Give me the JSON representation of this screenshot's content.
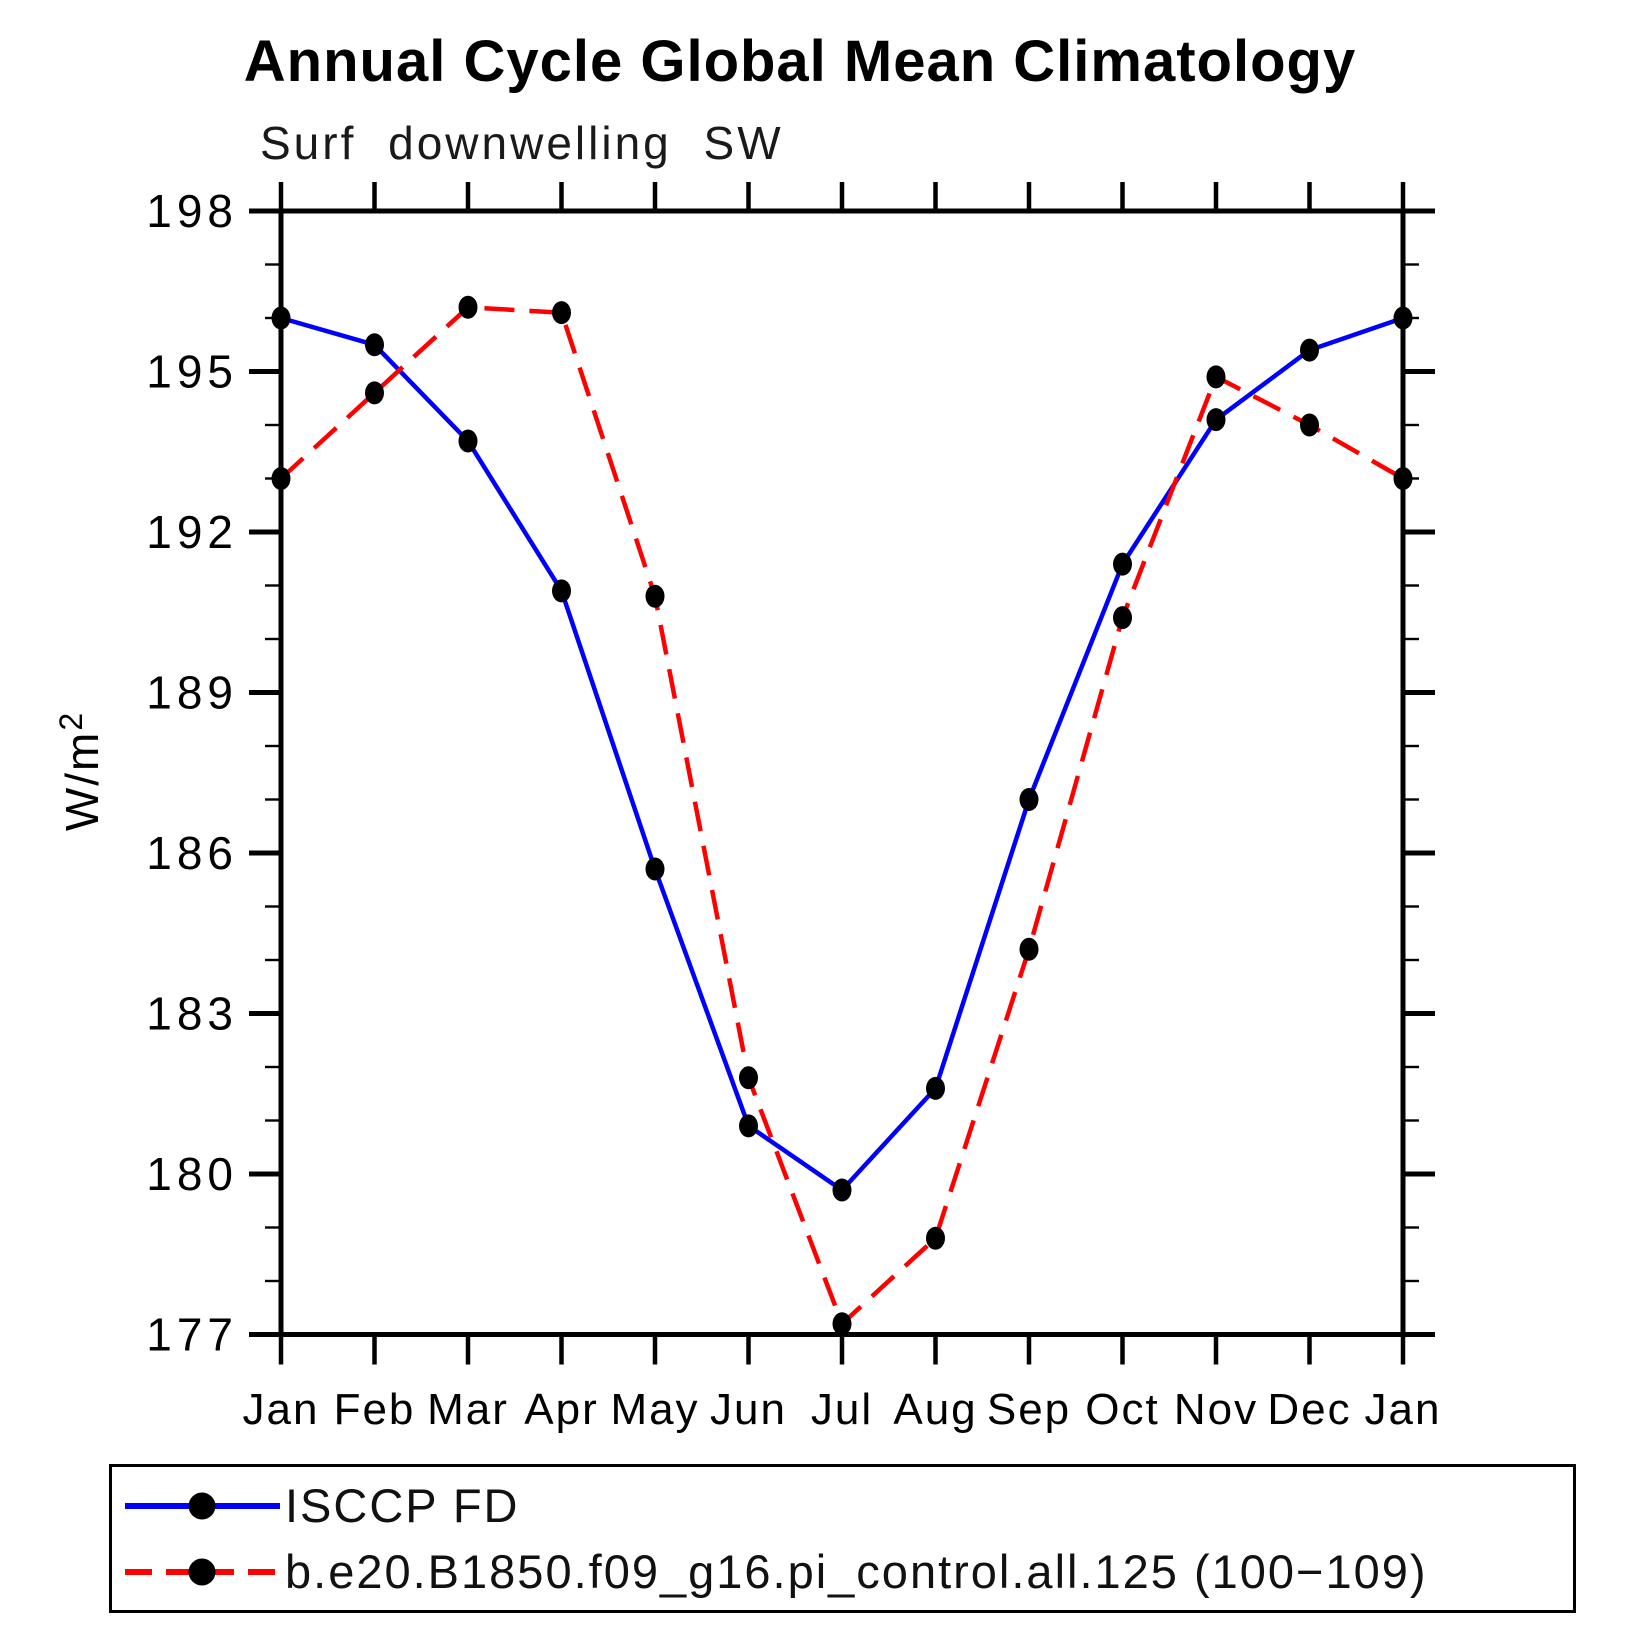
{
  "chart_data": {
    "type": "line",
    "title": "Annual Cycle Global Mean Climatology",
    "subtitle": "Surf downwelling SW",
    "ylabel": "W/m²",
    "categories": [
      "Jan",
      "Feb",
      "Mar",
      "Apr",
      "May",
      "Jun",
      "Jul",
      "Aug",
      "Sep",
      "Oct",
      "Nov",
      "Dec",
      "Jan"
    ],
    "ylim": [
      177,
      198
    ],
    "ytick_major": [
      177,
      180,
      183,
      186,
      189,
      192,
      195,
      198
    ],
    "ytick_minor_interval": 1,
    "grid": false,
    "legend_position": "bottom",
    "marker_color": "#000000",
    "axis_color": "#000000",
    "series": [
      {
        "name": "ISCCP FD",
        "color": "#0000ff",
        "style": "solid",
        "values": [
          196.0,
          195.5,
          193.7,
          190.9,
          185.7,
          180.9,
          179.7,
          181.6,
          187.0,
          191.4,
          194.1,
          195.4,
          196.0
        ]
      },
      {
        "name": "b.e20.B1850.f09_g16.pi_control.all.125 (100−109)",
        "color": "#ff0000",
        "style": "dashed",
        "values": [
          193.0,
          194.6,
          196.2,
          196.1,
          190.8,
          181.8,
          177.2,
          178.8,
          184.2,
          190.4,
          194.9,
          194.0,
          193.0
        ]
      }
    ]
  }
}
